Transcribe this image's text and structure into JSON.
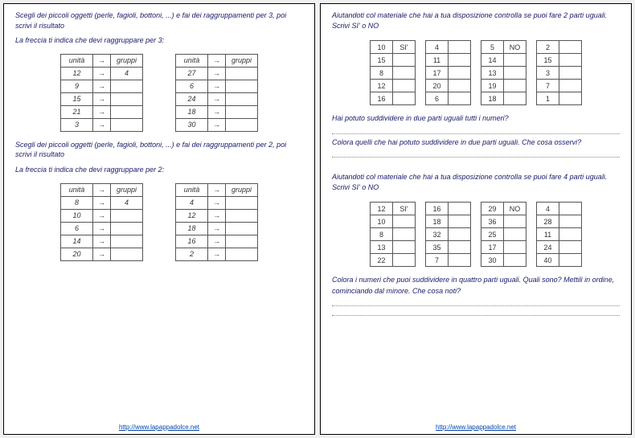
{
  "footer_url": "http://www.lapappadolce.net",
  "left": {
    "instr1": "Scegli dei piccoli oggetti (perle, fagioli, bottoni, ...) e fai dei raggruppamenti per 3, poi scrivi il risultato",
    "hint1": "La freccia ti indica che devi raggruppare per 3:",
    "headers": {
      "u": "unità",
      "g": "gruppi"
    },
    "t1a": [
      [
        12,
        4
      ],
      [
        9,
        ""
      ],
      [
        15,
        ""
      ],
      [
        21,
        ""
      ],
      [
        3,
        ""
      ]
    ],
    "t1b": [
      [
        27,
        ""
      ],
      [
        6,
        ""
      ],
      [
        24,
        ""
      ],
      [
        18,
        ""
      ],
      [
        30,
        ""
      ]
    ],
    "instr2": "Scegli dei piccoli oggetti (perle, fagioli, bottoni, ...) e fai dei raggruppamenti per 2, poi scrivi il risultato",
    "hint2": "La freccia ti indica che devi raggruppare per 2:",
    "t2a": [
      [
        8,
        4
      ],
      [
        10,
        ""
      ],
      [
        6,
        ""
      ],
      [
        14,
        ""
      ],
      [
        20,
        ""
      ]
    ],
    "t2b": [
      [
        4,
        ""
      ],
      [
        12,
        ""
      ],
      [
        18,
        ""
      ],
      [
        16,
        ""
      ],
      [
        2,
        ""
      ]
    ]
  },
  "right": {
    "instr1": "Aiutandoti col materiale che hai a tua disposizione controlla se puoi fare 2 parti uguali. Scrivi SI' o NO",
    "labels": {
      "si": "SI'",
      "no": "NO"
    },
    "g1": {
      "a": [
        10,
        15,
        8,
        12,
        16
      ],
      "b": [
        4,
        11,
        17,
        20,
        6
      ],
      "c": [
        5,
        14,
        13,
        19,
        18
      ],
      "d": [
        2,
        15,
        3,
        7,
        1
      ]
    },
    "q1": "Hai potuto suddividere in due parti uguali tutti i numeri?",
    "q2": "Colora quelli che hai potuto suddividere in due parti uguali. Che cosa osservi?",
    "instr2": "Aiutandoti col materiale che hai a tua disposizione controlla se puoi fare 4 parti uguali. Scrivi SI' o NO",
    "g2": {
      "a": [
        12,
        10,
        8,
        13,
        22
      ],
      "b": [
        16,
        18,
        32,
        35,
        7
      ],
      "c": [
        29,
        36,
        25,
        17,
        30
      ],
      "d": [
        4,
        28,
        11,
        24,
        40
      ]
    },
    "q3": "Colora i numeri che puoi suddividere in quattro parti uguali. Quali sono? Mettili in ordine, cominciando dal minore. Che cosa noti?"
  }
}
